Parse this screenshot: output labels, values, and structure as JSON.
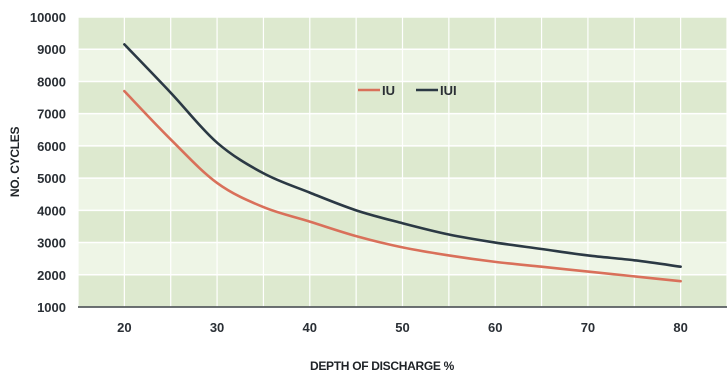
{
  "chart_data": {
    "type": "line",
    "title": "",
    "xlabel": "DEPTH OF DISCHARGE %",
    "ylabel": "NO. CYCLES",
    "xlim": [
      15,
      85
    ],
    "ylim": [
      1000,
      10000
    ],
    "x_ticks": [
      "20",
      "30",
      "40",
      "50",
      "60",
      "70",
      "80"
    ],
    "y_ticks": [
      "1000",
      "2000",
      "3000",
      "4000",
      "5000",
      "6000",
      "7000",
      "8000",
      "9000",
      "10000"
    ],
    "grid": true,
    "legend_position": "top-center",
    "colors": {
      "band_dark": "#dde9cf",
      "band_light": "#eef5e6",
      "gridline": "#ffffff",
      "axis": "#3c4247"
    },
    "series": [
      {
        "name": "IU",
        "color": "#d9705a",
        "x": [
          20,
          25,
          30,
          35,
          40,
          45,
          50,
          55,
          60,
          65,
          70,
          75,
          80
        ],
        "y": [
          7700,
          6200,
          4850,
          4100,
          3650,
          3200,
          2850,
          2600,
          2400,
          2250,
          2100,
          1950,
          1800
        ]
      },
      {
        "name": "IUI",
        "color": "#2b3944",
        "x": [
          20,
          25,
          30,
          35,
          40,
          45,
          50,
          55,
          60,
          65,
          70,
          75,
          80
        ],
        "y": [
          9150,
          7650,
          6100,
          5150,
          4550,
          4000,
          3600,
          3250,
          3000,
          2800,
          2600,
          2450,
          2250
        ]
      }
    ]
  }
}
